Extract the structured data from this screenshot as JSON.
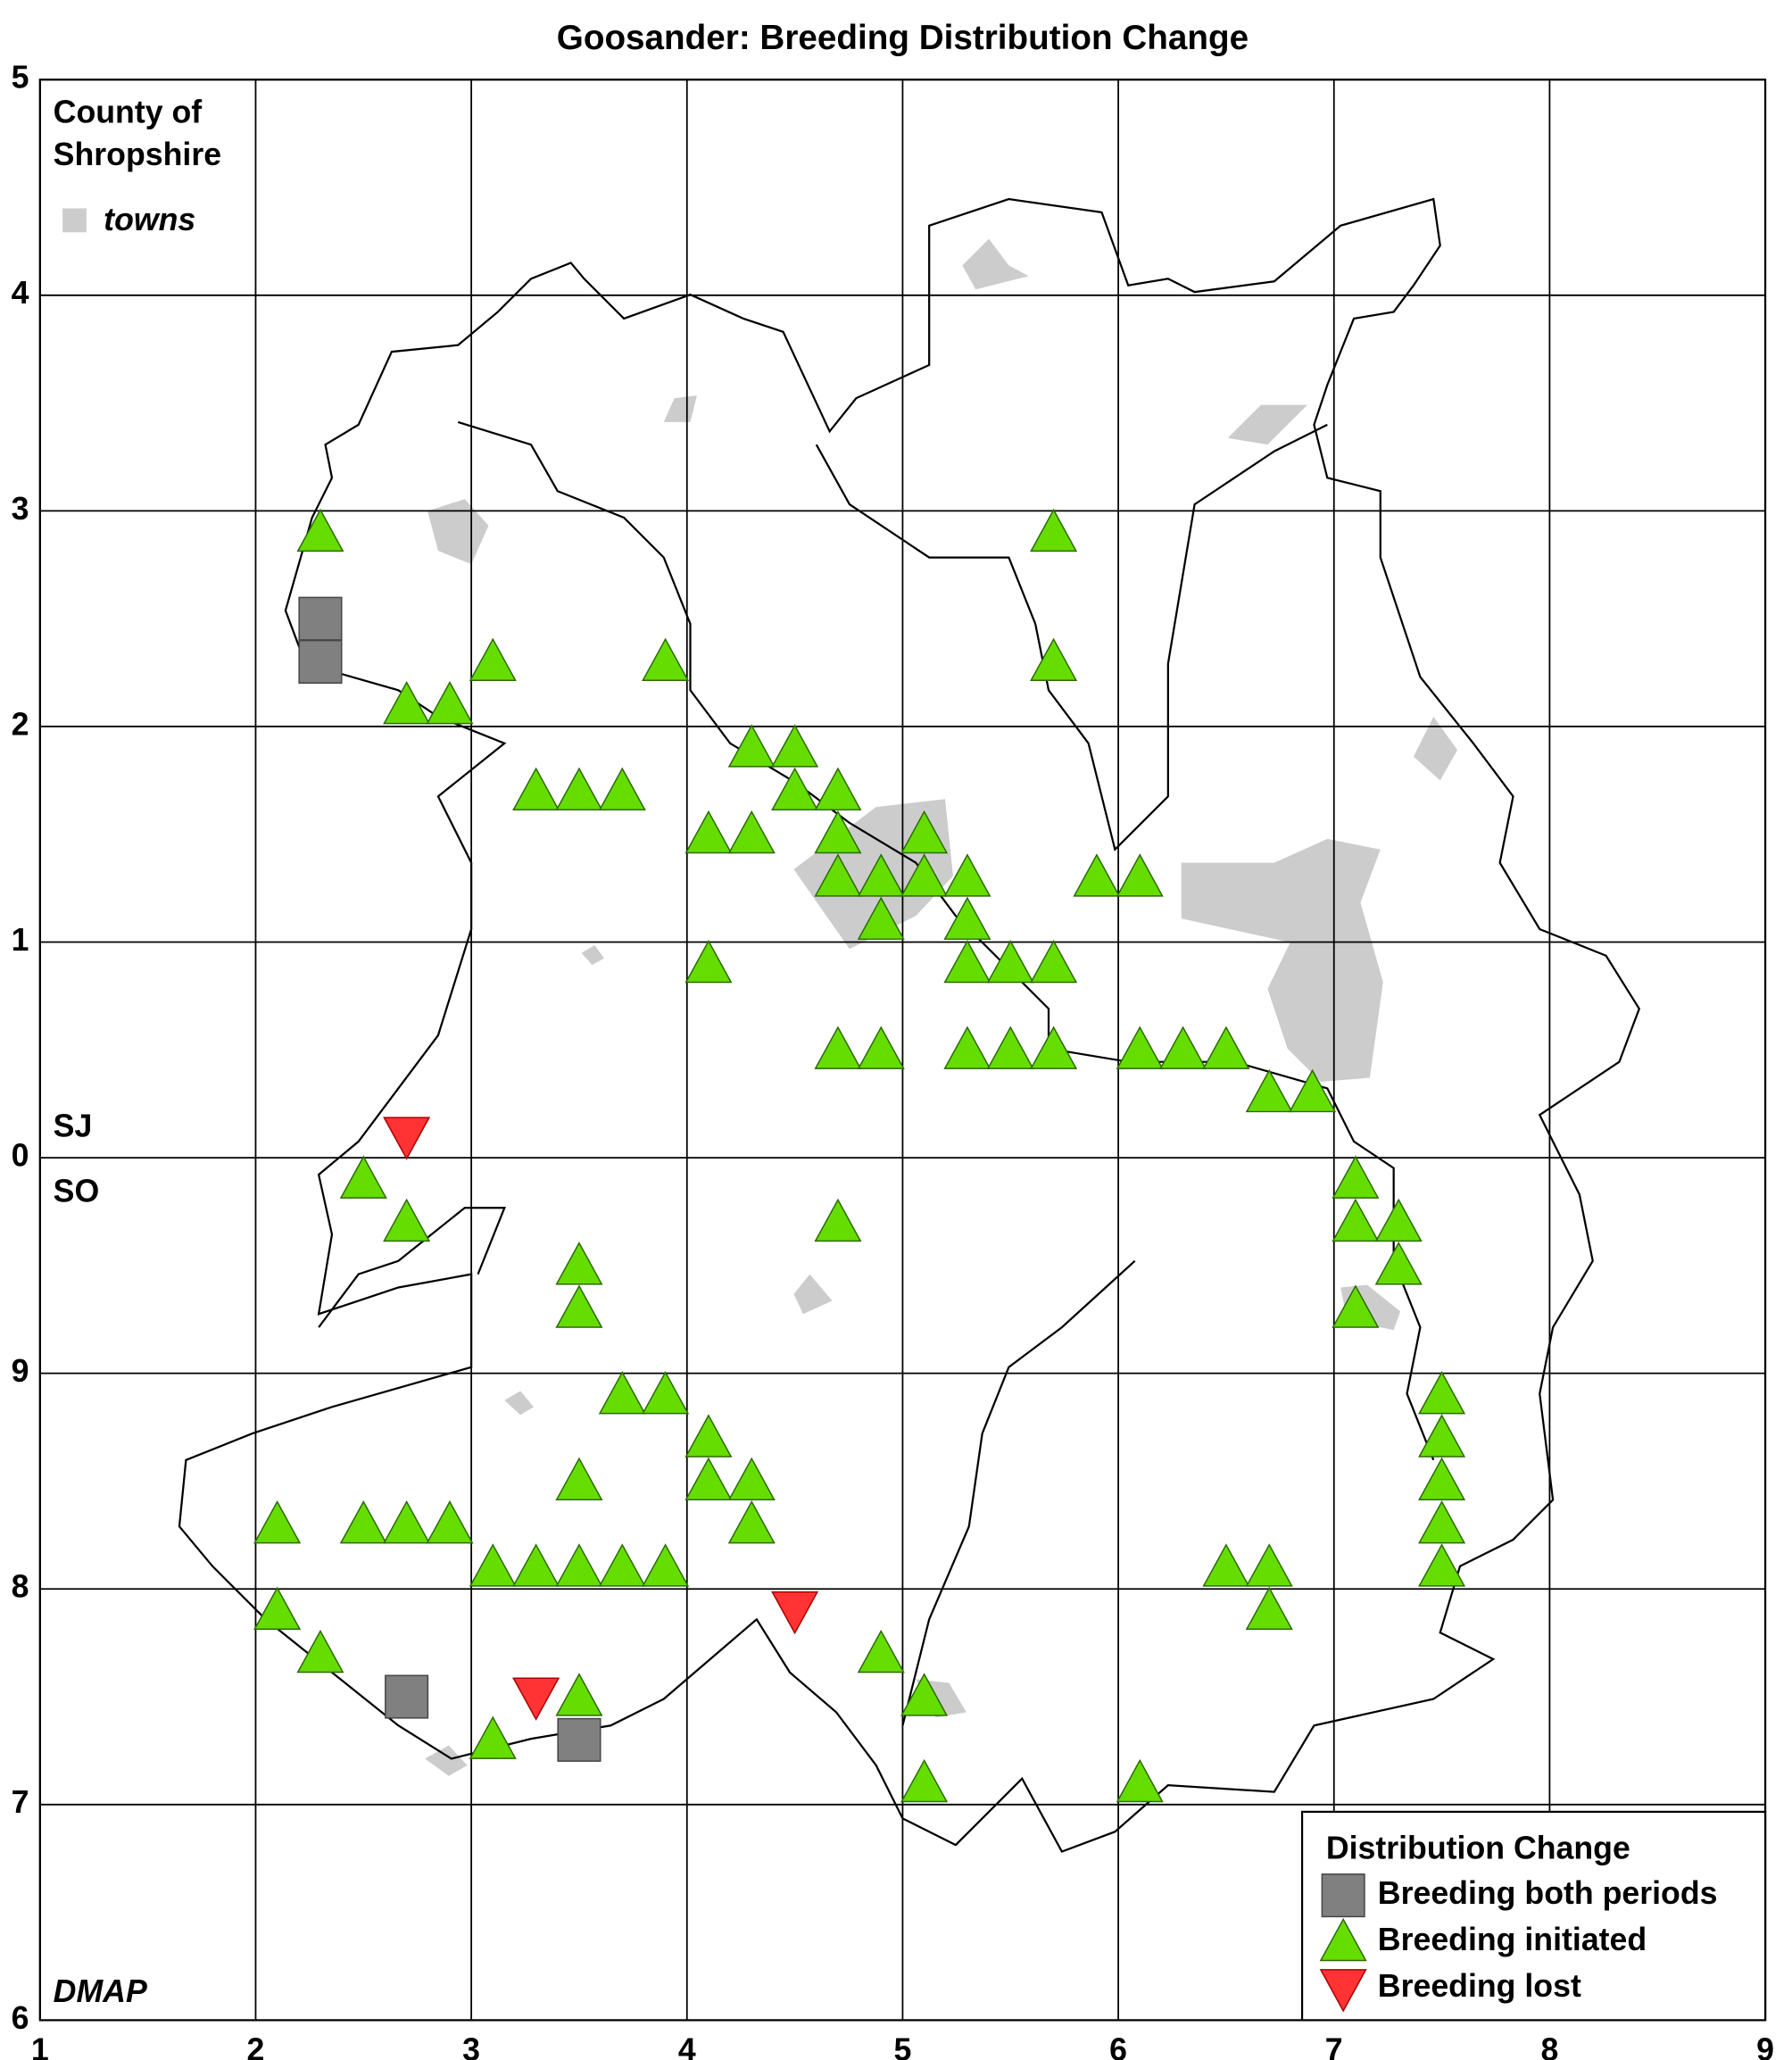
{
  "chart_data": {
    "type": "scatter",
    "title": "Goosander: Breeding Distribution Change",
    "region_label": [
      "County of",
      "Shropshire"
    ],
    "towns_label": "towns",
    "grid_labels": [
      "SJ",
      "SO"
    ],
    "credit": "DMAP",
    "legend_title": "Distribution Change",
    "legend_position": "bottom-right",
    "grid": true,
    "xlim": [
      1,
      9
    ],
    "xticks": [
      1,
      2,
      3,
      4,
      5,
      6,
      7,
      8,
      9
    ],
    "ylim": [
      0,
      9
    ],
    "yticks": [
      {
        "value": 0,
        "label": "6"
      },
      {
        "value": 1,
        "label": "7"
      },
      {
        "value": 2,
        "label": "8"
      },
      {
        "value": 3,
        "label": "9"
      },
      {
        "value": 4,
        "label": "0"
      },
      {
        "value": 5,
        "label": "1"
      },
      {
        "value": 6,
        "label": "2"
      },
      {
        "value": 7,
        "label": "3"
      },
      {
        "value": 8,
        "label": "4"
      },
      {
        "value": 9,
        "label": "5"
      }
    ],
    "series": [
      {
        "name": "Breeding both periods",
        "color": "#808080",
        "marker": "square",
        "x": [
          2.3,
          2.3,
          2.7,
          3.5
        ],
        "y": [
          6.5,
          6.3,
          1.5,
          1.3
        ]
      },
      {
        "name": "Breeding initiated",
        "color": "#66dd00",
        "marker": "triangle",
        "x": [
          2.3,
          5.7,
          3.1,
          3.9,
          5.7,
          2.7,
          2.9,
          4.3,
          4.5,
          3.3,
          3.5,
          3.7,
          4.5,
          4.7,
          4.1,
          4.3,
          4.7,
          5.1,
          4.7,
          4.9,
          5.1,
          5.3,
          5.9,
          6.1,
          4.9,
          5.3,
          4.1,
          5.3,
          5.5,
          5.7,
          4.7,
          4.9,
          5.3,
          5.5,
          5.7,
          6.1,
          6.3,
          6.5,
          6.7,
          6.9,
          2.5,
          7.1,
          2.7,
          4.7,
          7.1,
          7.3,
          3.5,
          7.3,
          3.5,
          7.1,
          3.7,
          3.9,
          7.5,
          4.1,
          7.5,
          3.5,
          4.1,
          4.3,
          7.5,
          2.1,
          2.5,
          2.7,
          2.9,
          4.3,
          7.5,
          3.1,
          3.3,
          3.5,
          3.7,
          3.9,
          6.5,
          6.7,
          7.5,
          2.1,
          6.7,
          2.3,
          4.9,
          3.5,
          5.1,
          3.1,
          5.1,
          6.1
        ],
        "y": [
          6.9,
          6.9,
          6.3,
          6.3,
          6.3,
          6.1,
          6.1,
          5.9,
          5.9,
          5.7,
          5.7,
          5.7,
          5.7,
          5.7,
          5.5,
          5.5,
          5.5,
          5.5,
          5.3,
          5.3,
          5.3,
          5.3,
          5.3,
          5.3,
          5.1,
          5.1,
          4.9,
          4.9,
          4.9,
          4.9,
          4.5,
          4.5,
          4.5,
          4.5,
          4.5,
          4.5,
          4.5,
          4.5,
          4.3,
          4.3,
          3.9,
          3.9,
          3.7,
          3.7,
          3.7,
          3.7,
          3.5,
          3.5,
          3.3,
          3.3,
          2.9,
          2.9,
          2.9,
          2.7,
          2.7,
          2.5,
          2.5,
          2.5,
          2.5,
          2.3,
          2.3,
          2.3,
          2.3,
          2.3,
          2.3,
          2.1,
          2.1,
          2.1,
          2.1,
          2.1,
          2.1,
          2.1,
          2.1,
          1.9,
          1.9,
          1.7,
          1.7,
          1.5,
          1.5,
          1.3,
          1.1,
          1.1
        ]
      },
      {
        "name": "Breeding lost",
        "color": "#ff3333",
        "marker": "triangle-down",
        "x": [
          2.7,
          4.5,
          3.3
        ],
        "y": [
          4.1,
          1.9,
          1.5
        ]
      }
    ]
  }
}
